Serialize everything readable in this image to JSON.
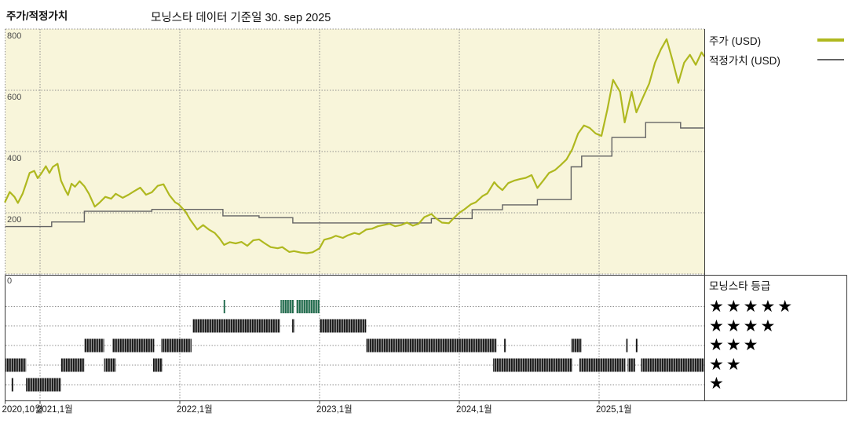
{
  "page": {
    "title": "주가/적정가치",
    "subtitle": "모닝스타 데이터 기준일 30. sep 2025"
  },
  "legend": {
    "price_label": "주가 (USD)",
    "fair_value_label": "적정가치 (USD)"
  },
  "rating_legend": {
    "title": "모닝스타 등급",
    "rows": [
      {
        "stars": 5,
        "glyphs": "★★★★★"
      },
      {
        "stars": 4,
        "glyphs": "★★★★"
      },
      {
        "stars": 3,
        "glyphs": "★★★"
      },
      {
        "stars": 2,
        "glyphs": "★★"
      },
      {
        "stars": 1,
        "glyphs": "★"
      }
    ]
  },
  "colors": {
    "plot_bg": "#f8f5da",
    "price_line": "#afb81f",
    "fair_value_line": "#646464",
    "grid": "#8f8f8f",
    "border": "#3a3a3a",
    "rating_bar_dark": "#161616",
    "rating_bar_dark_halo": "#8f8f8f",
    "rating_bar_green": "#1e6a4c",
    "rating_bar_green_halo": "#93b4a5",
    "star": "#000000"
  },
  "chart_data": [
    {
      "type": "line",
      "title": "주가/적정가치",
      "subtitle": "모닝스타 데이터 기준일 30. sep 2025",
      "x_unit": "months_since_2020-10",
      "x_range": [
        "2020-10",
        "2025-10"
      ],
      "ylim": [
        0,
        800
      ],
      "y_ticks": [
        800,
        600,
        400,
        200,
        0
      ],
      "grid": true,
      "legend_position": "right",
      "x_ticks": [
        {
          "t": 0,
          "label": "2020,10월"
        },
        {
          "t": 3,
          "label": "2021,1월"
        },
        {
          "t": 15,
          "label": "2022,1월"
        },
        {
          "t": 27,
          "label": "2023,1월"
        },
        {
          "t": 39,
          "label": "2024,1월"
        },
        {
          "t": 51,
          "label": "2025,1월"
        }
      ],
      "series": [
        {
          "name": "주가 (USD)",
          "type": "line",
          "points": [
            [
              0,
              236
            ],
            [
              0.4,
              268
            ],
            [
              0.8,
              252
            ],
            [
              1.1,
              232
            ],
            [
              1.5,
              262
            ],
            [
              1.8,
              295
            ],
            [
              2.1,
              330
            ],
            [
              2.5,
              337
            ],
            [
              2.8,
              313
            ],
            [
              3.1,
              328
            ],
            [
              3.5,
              352
            ],
            [
              3.8,
              330
            ],
            [
              4.1,
              350
            ],
            [
              4.5,
              360
            ],
            [
              4.8,
              305
            ],
            [
              5.2,
              272
            ],
            [
              5.4,
              258
            ],
            [
              5.7,
              295
            ],
            [
              6.0,
              285
            ],
            [
              6.4,
              303
            ],
            [
              6.8,
              287
            ],
            [
              7.2,
              262
            ],
            [
              7.7,
              220
            ],
            [
              8.1,
              233
            ],
            [
              8.6,
              252
            ],
            [
              9.1,
              246
            ],
            [
              9.5,
              262
            ],
            [
              10.1,
              249
            ],
            [
              10.6,
              259
            ],
            [
              11.1,
              271
            ],
            [
              11.6,
              282
            ],
            [
              12.1,
              259
            ],
            [
              12.6,
              267
            ],
            [
              13.1,
              288
            ],
            [
              13.6,
              293
            ],
            [
              14.1,
              258
            ],
            [
              14.6,
              234
            ],
            [
              14.9,
              228
            ],
            [
              15.5,
              203
            ],
            [
              15.9,
              177
            ],
            [
              16.5,
              145
            ],
            [
              17.0,
              160
            ],
            [
              17.5,
              145
            ],
            [
              18.0,
              134
            ],
            [
              18.4,
              117
            ],
            [
              18.8,
              95
            ],
            [
              19.3,
              104
            ],
            [
              19.8,
              100
            ],
            [
              20.3,
              105
            ],
            [
              20.8,
              92
            ],
            [
              21.3,
              110
            ],
            [
              21.8,
              113
            ],
            [
              22.3,
              100
            ],
            [
              22.8,
              88
            ],
            [
              23.4,
              84
            ],
            [
              23.8,
              88
            ],
            [
              24.4,
              72
            ],
            [
              24.8,
              75
            ],
            [
              25.4,
              70
            ],
            [
              25.9,
              68
            ],
            [
              26.4,
              71
            ],
            [
              27.0,
              84
            ],
            [
              27.4,
              112
            ],
            [
              28.0,
              118
            ],
            [
              28.4,
              125
            ],
            [
              29.0,
              118
            ],
            [
              29.4,
              126
            ],
            [
              30.0,
              134
            ],
            [
              30.4,
              130
            ],
            [
              31.0,
              145
            ],
            [
              31.5,
              148
            ],
            [
              32.0,
              156
            ],
            [
              32.5,
              160
            ],
            [
              33.0,
              164
            ],
            [
              33.5,
              156
            ],
            [
              34.0,
              160
            ],
            [
              34.5,
              168
            ],
            [
              35.0,
              158
            ],
            [
              35.5,
              164
            ],
            [
              36.0,
              186
            ],
            [
              36.6,
              196
            ],
            [
              37.0,
              182
            ],
            [
              37.5,
              168
            ],
            [
              38.1,
              166
            ],
            [
              38.5,
              182
            ],
            [
              39.0,
              200
            ],
            [
              39.4,
              210
            ],
            [
              40.0,
              228
            ],
            [
              40.4,
              234
            ],
            [
              41.0,
              255
            ],
            [
              41.4,
              263
            ],
            [
              42.0,
              300
            ],
            [
              42.3,
              287
            ],
            [
              42.7,
              274
            ],
            [
              43.2,
              297
            ],
            [
              43.7,
              305
            ],
            [
              44.2,
              310
            ],
            [
              44.7,
              314
            ],
            [
              45.2,
              323
            ],
            [
              45.7,
              281
            ],
            [
              46.2,
              305
            ],
            [
              46.7,
              330
            ],
            [
              47.2,
              339
            ],
            [
              47.7,
              356
            ],
            [
              48.2,
              374
            ],
            [
              48.7,
              408
            ],
            [
              49.2,
              459
            ],
            [
              49.7,
              485
            ],
            [
              50.2,
              477
            ],
            [
              50.7,
              459
            ],
            [
              51.2,
              451
            ],
            [
              51.7,
              536
            ],
            [
              52.2,
              634
            ],
            [
              52.8,
              595
            ],
            [
              53.2,
              495
            ],
            [
              53.8,
              595
            ],
            [
              54.2,
              528
            ],
            [
              54.8,
              580
            ],
            [
              55.3,
              622
            ],
            [
              55.8,
              690
            ],
            [
              56.3,
              733
            ],
            [
              56.8,
              767
            ],
            [
              57.3,
              698
            ],
            [
              57.8,
              624
            ],
            [
              58.3,
              690
            ],
            [
              58.8,
              716
            ],
            [
              59.3,
              683
            ],
            [
              59.8,
              724
            ],
            [
              60,
              712
            ]
          ]
        },
        {
          "name": "적정가치 (USD)",
          "type": "step",
          "points": [
            [
              0,
              155
            ],
            [
              4.0,
              170
            ],
            [
              6.8,
              205
            ],
            [
              12.6,
              211
            ],
            [
              18.7,
              190
            ],
            [
              21.8,
              184
            ],
            [
              24.7,
              167
            ],
            [
              36.6,
              181
            ],
            [
              40.1,
              210
            ],
            [
              42.7,
              226
            ],
            [
              45.7,
              243
            ],
            [
              48.6,
              350
            ],
            [
              49.5,
              385
            ],
            [
              52.1,
              446
            ],
            [
              55.0,
              495
            ],
            [
              58.0,
              477
            ],
            [
              60,
              477
            ]
          ]
        }
      ]
    },
    {
      "type": "rating-timeline",
      "title": "모닝스타 등급",
      "rows": [
        5,
        4,
        3,
        2,
        1
      ],
      "x_unit": "months_since_2020-10",
      "segments": [
        {
          "stars": 5,
          "from": 18.75,
          "to": 18.9
        },
        {
          "stars": 5,
          "from": 23.65,
          "to": 24.8
        },
        {
          "stars": 5,
          "from": 25.0,
          "to": 27.0
        },
        {
          "stars": 4,
          "from": 16.1,
          "to": 23.6
        },
        {
          "stars": 4,
          "from": 24.65,
          "to": 24.85
        },
        {
          "stars": 4,
          "from": 27.0,
          "to": 31.0
        },
        {
          "stars": 3,
          "from": 6.8,
          "to": 8.5
        },
        {
          "stars": 3,
          "from": 9.2,
          "to": 12.8
        },
        {
          "stars": 3,
          "from": 13.4,
          "to": 16.0
        },
        {
          "stars": 3,
          "from": 31.0,
          "to": 42.2
        },
        {
          "stars": 3,
          "from": 42.85,
          "to": 43.0
        },
        {
          "stars": 3,
          "from": 48.6,
          "to": 49.5
        },
        {
          "stars": 3,
          "from": 53.3,
          "to": 53.45
        },
        {
          "stars": 3,
          "from": 54.15,
          "to": 54.3
        },
        {
          "stars": 2,
          "from": 0.05,
          "to": 1.8
        },
        {
          "stars": 2,
          "from": 4.8,
          "to": 6.8
        },
        {
          "stars": 2,
          "from": 8.5,
          "to": 9.5
        },
        {
          "stars": 2,
          "from": 12.7,
          "to": 13.5
        },
        {
          "stars": 2,
          "from": 41.9,
          "to": 48.7
        },
        {
          "stars": 2,
          "from": 49.3,
          "to": 53.25
        },
        {
          "stars": 2,
          "from": 53.45,
          "to": 54.1
        },
        {
          "stars": 2,
          "from": 54.6,
          "to": 60
        },
        {
          "stars": 1,
          "from": 0.55,
          "to": 0.7
        },
        {
          "stars": 1,
          "from": 1.8,
          "to": 4.8
        }
      ]
    }
  ]
}
